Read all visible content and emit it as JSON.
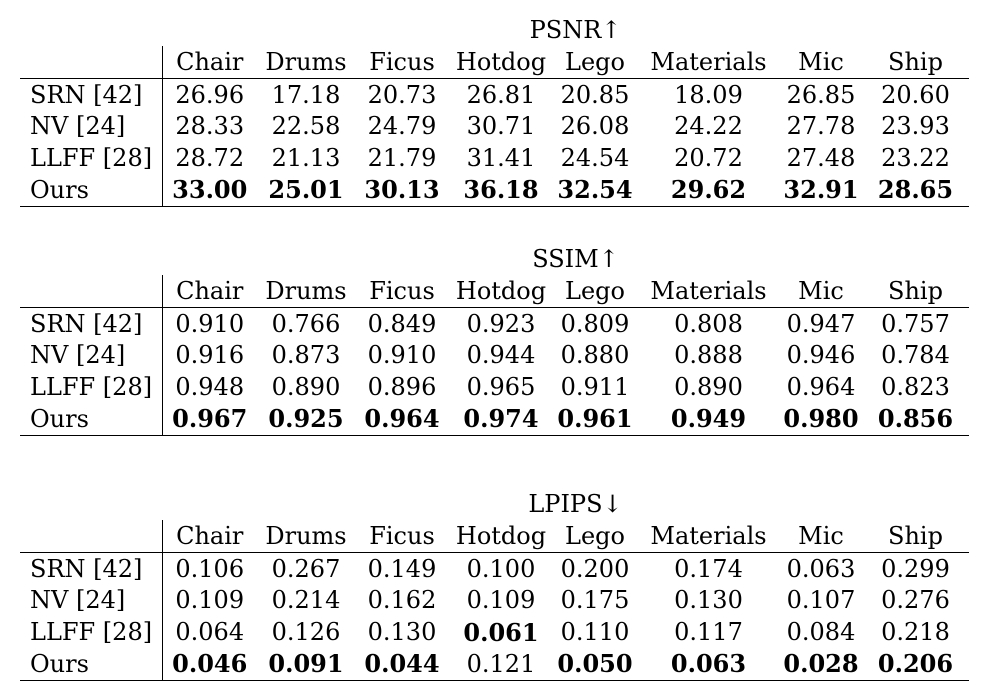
{
  "columns": [
    "Chair",
    "Drums",
    "Ficus",
    "Hotdog",
    "Lego",
    "Materials",
    "Mic",
    "Ship"
  ],
  "tables": [
    {
      "title": "PSNR↑",
      "rows": [
        {
          "method": "SRN [42]",
          "values": [
            "26.96",
            "17.18",
            "20.73",
            "26.81",
            "20.85",
            "18.09",
            "26.85",
            "20.60"
          ],
          "bold": [
            false,
            false,
            false,
            false,
            false,
            false,
            false,
            false
          ]
        },
        {
          "method": "NV [24]",
          "values": [
            "28.33",
            "22.58",
            "24.79",
            "30.71",
            "26.08",
            "24.22",
            "27.78",
            "23.93"
          ],
          "bold": [
            false,
            false,
            false,
            false,
            false,
            false,
            false,
            false
          ]
        },
        {
          "method": "LLFF [28]",
          "values": [
            "28.72",
            "21.13",
            "21.79",
            "31.41",
            "24.54",
            "20.72",
            "27.48",
            "23.22"
          ],
          "bold": [
            false,
            false,
            false,
            false,
            false,
            false,
            false,
            false
          ]
        },
        {
          "method": "Ours",
          "values": [
            "33.00",
            "25.01",
            "30.13",
            "36.18",
            "32.54",
            "29.62",
            "32.91",
            "28.65"
          ],
          "bold": [
            true,
            true,
            true,
            true,
            true,
            true,
            true,
            true
          ]
        }
      ]
    },
    {
      "title": "SSIM↑",
      "rows": [
        {
          "method": "SRN [42]",
          "values": [
            "0.910",
            "0.766",
            "0.849",
            "0.923",
            "0.809",
            "0.808",
            "0.947",
            "0.757"
          ],
          "bold": [
            false,
            false,
            false,
            false,
            false,
            false,
            false,
            false
          ]
        },
        {
          "method": "NV [24]",
          "values": [
            "0.916",
            "0.873",
            "0.910",
            "0.944",
            "0.880",
            "0.888",
            "0.946",
            "0.784"
          ],
          "bold": [
            false,
            false,
            false,
            false,
            false,
            false,
            false,
            false
          ]
        },
        {
          "method": "LLFF [28]",
          "values": [
            "0.948",
            "0.890",
            "0.896",
            "0.965",
            "0.911",
            "0.890",
            "0.964",
            "0.823"
          ],
          "bold": [
            false,
            false,
            false,
            false,
            false,
            false,
            false,
            false
          ]
        },
        {
          "method": "Ours",
          "values": [
            "0.967",
            "0.925",
            "0.964",
            "0.974",
            "0.961",
            "0.949",
            "0.980",
            "0.856"
          ],
          "bold": [
            true,
            true,
            true,
            true,
            true,
            true,
            true,
            true
          ]
        }
      ]
    },
    {
      "title": "LPIPS↓",
      "rows": [
        {
          "method": "SRN [42]",
          "values": [
            "0.106",
            "0.267",
            "0.149",
            "0.100",
            "0.200",
            "0.174",
            "0.063",
            "0.299"
          ],
          "bold": [
            false,
            false,
            false,
            false,
            false,
            false,
            false,
            false
          ]
        },
        {
          "method": "NV [24]",
          "values": [
            "0.109",
            "0.214",
            "0.162",
            "0.109",
            "0.175",
            "0.130",
            "0.107",
            "0.276"
          ],
          "bold": [
            false,
            false,
            false,
            false,
            false,
            false,
            false,
            false
          ]
        },
        {
          "method": "LLFF [28]",
          "values": [
            "0.064",
            "0.126",
            "0.130",
            "0.061",
            "0.110",
            "0.117",
            "0.084",
            "0.218"
          ],
          "bold": [
            false,
            false,
            false,
            true,
            false,
            false,
            false,
            false
          ]
        },
        {
          "method": "Ours",
          "values": [
            "0.046",
            "0.091",
            "0.044",
            "0.121",
            "0.050",
            "0.063",
            "0.028",
            "0.206"
          ],
          "bold": [
            true,
            true,
            true,
            false,
            true,
            true,
            true,
            true
          ]
        }
      ]
    }
  ]
}
